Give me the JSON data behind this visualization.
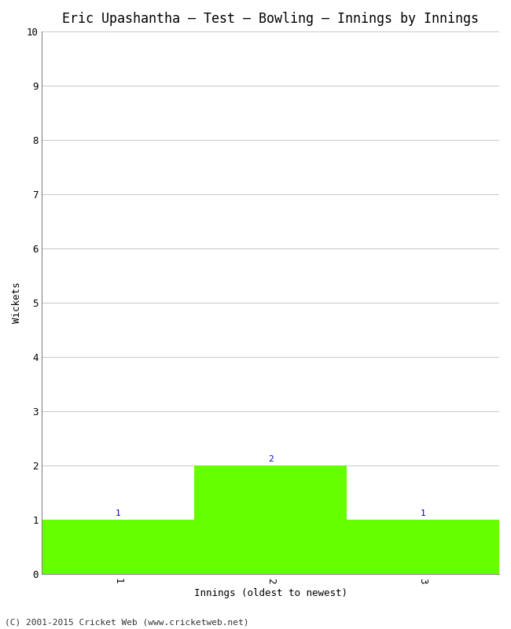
{
  "title": "Eric Upashantha – Test – Bowling – Innings by Innings",
  "xlabel": "Innings (oldest to newest)",
  "ylabel": "Wickets",
  "categories": [
    1,
    2,
    3
  ],
  "values": [
    1,
    2,
    1
  ],
  "bar_color": "#66ff00",
  "bar_edge_color": "#66ff00",
  "ylim": [
    0,
    10
  ],
  "yticks": [
    0,
    1,
    2,
    3,
    4,
    5,
    6,
    7,
    8,
    9,
    10
  ],
  "xticks": [
    1,
    2,
    3
  ],
  "annotation_color": "#0000cc",
  "annotation_fontsize": 8,
  "title_fontsize": 12,
  "axis_label_fontsize": 9,
  "tick_fontsize": 9,
  "footer_text": "(C) 2001-2015 Cricket Web (www.cricketweb.net)",
  "footer_fontsize": 8,
  "background_color": "#ffffff",
  "grid_color": "#cccccc",
  "bar_width": 1.0,
  "xlim": [
    0.5,
    3.5
  ]
}
